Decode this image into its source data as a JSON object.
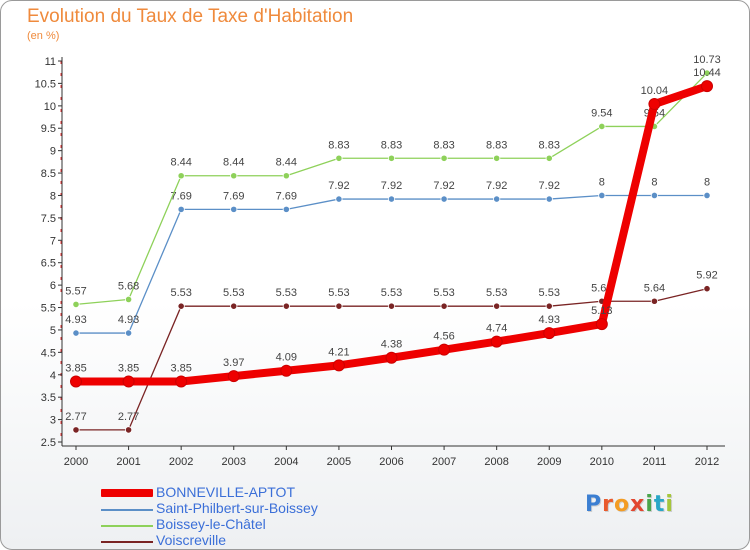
{
  "title": "Evolution du Taux de Taxe d'Habitation",
  "unit": "(en %)",
  "logo": {
    "text": "Proxiti",
    "colors": [
      "#3c7fd2",
      "#e95a2d",
      "#f39c24",
      "#e2462f",
      "#4aa54b",
      "#29a6c7",
      "#a6c63b"
    ]
  },
  "chart_data": {
    "type": "line",
    "title": "Evolution du Taux de Taxe d'Habitation",
    "ylabel": "(en %)",
    "x": [
      "2000",
      "2001",
      "2002",
      "2003",
      "2004",
      "2005",
      "2006",
      "2007",
      "2008",
      "2009",
      "2010",
      "2011",
      "2012"
    ],
    "ylim": [
      2.5,
      11
    ],
    "yticks": [
      "2.5",
      "3",
      "3.5",
      "4",
      "4.5",
      "5",
      "5.5",
      "6",
      "6.5",
      "7",
      "7.5",
      "8",
      "8.5",
      "9",
      "9.5",
      "10",
      "10.5",
      "11"
    ],
    "grid": false,
    "legend_position": "bottom-left",
    "series": [
      {
        "name": "Voiscreville",
        "color": "#7a2424",
        "values": [
          2.77,
          2.77,
          5.53,
          5.53,
          5.53,
          5.53,
          5.53,
          5.53,
          5.53,
          5.53,
          5.64,
          5.64,
          5.92
        ],
        "labels": [
          "2.77",
          "2.77",
          "5.53",
          "5.53",
          "5.53",
          "5.53",
          "5.53",
          "5.53",
          "5.53",
          "5.53",
          "5.64",
          "5.64",
          "5.92"
        ]
      },
      {
        "name": "Saint-Philbert-sur-Boissey",
        "color": "#5b8fc7",
        "values": [
          4.93,
          4.93,
          7.69,
          7.69,
          7.69,
          7.92,
          7.92,
          7.92,
          7.92,
          7.92,
          8,
          8,
          8
        ],
        "labels": [
          "4.93",
          "4.93",
          "7.69",
          "7.69",
          "7.69",
          "7.92",
          "7.92",
          "7.92",
          "7.92",
          "7.92",
          "8",
          "8",
          "8"
        ]
      },
      {
        "name": "Boissey-le-Châtel",
        "color": "#8ed15a",
        "values": [
          5.57,
          5.68,
          8.44,
          8.44,
          8.44,
          8.83,
          8.83,
          8.83,
          8.83,
          8.83,
          9.54,
          9.54,
          10.73
        ],
        "labels": [
          "5.57",
          "5.68",
          "8.44",
          "8.44",
          "8.44",
          "8.83",
          "8.83",
          "8.83",
          "8.83",
          "8.83",
          "9.54",
          "9.54",
          "10.73"
        ]
      },
      {
        "name": "BONNEVILLE-APTOT",
        "color": "#ee0000",
        "values": [
          3.85,
          3.85,
          3.85,
          3.97,
          4.09,
          4.21,
          4.38,
          4.56,
          4.74,
          4.93,
          5.13,
          10.04,
          10.44
        ],
        "labels": [
          "3.85",
          "3.85",
          "3.85",
          "3.97",
          "4.09",
          "4.21",
          "4.38",
          "4.56",
          "4.74",
          "4.93",
          "5.13",
          "10.04",
          "10.44"
        ]
      }
    ],
    "legend": [
      "BONNEVILLE-APTOT",
      "Saint-Philbert-sur-Boissey",
      "Boissey-le-Châtel",
      "Voiscreville"
    ]
  }
}
